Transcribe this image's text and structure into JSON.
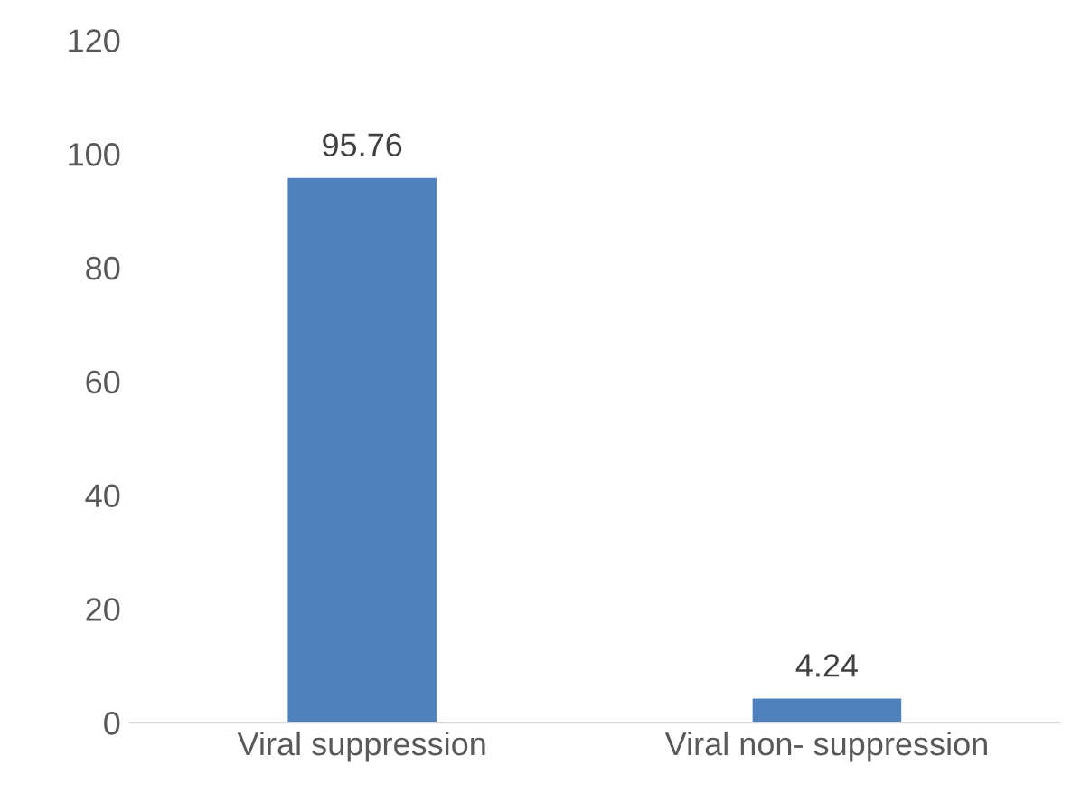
{
  "chart_data": {
    "type": "bar",
    "categories": [
      "Viral suppression",
      "Viral non- suppression"
    ],
    "values": [
      95.76,
      4.24
    ],
    "color": "#4f81bd",
    "ylim": [
      0,
      120
    ],
    "yticks": [
      0,
      20,
      40,
      60,
      80,
      100,
      120
    ],
    "data_labels": true,
    "grid": false,
    "legend": false
  }
}
